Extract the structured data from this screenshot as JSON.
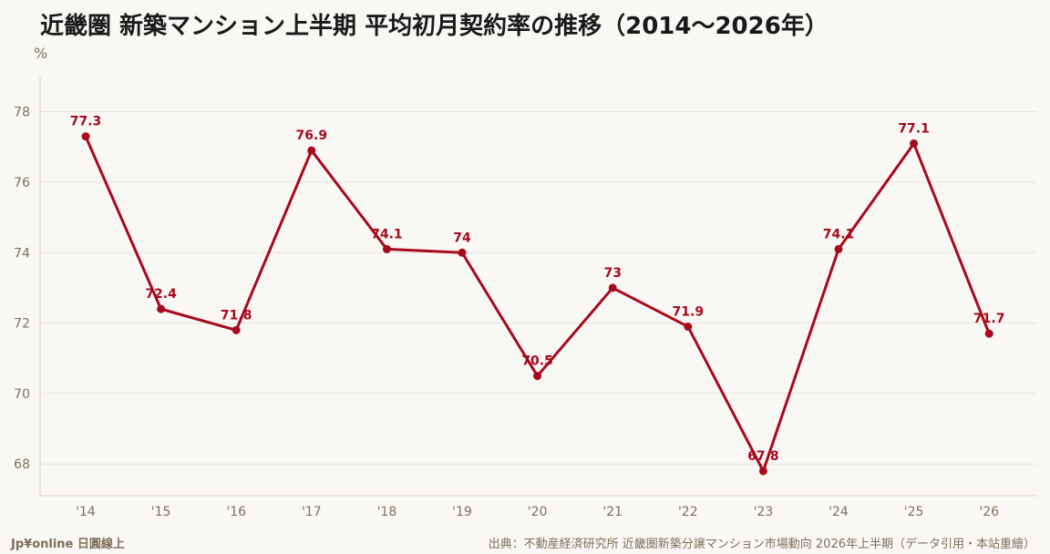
{
  "title": "近畿圏 新築マンション上半期 平均初月契約率の推移（2014〜2026年）",
  "unit": "%",
  "footer": {
    "brand": "Jp¥online 日圓線上",
    "source": "出典：不動産経済研究所 近畿圏新築分譲マンション市場動向 2026年上半期（データ引用・本站重繪）"
  },
  "colors": {
    "line": "#a8091c",
    "label": "#a8091c",
    "axis_text": "#7d6e5c",
    "grid": "#e8e3dc",
    "background": "#faf8f5"
  },
  "chart_data": {
    "type": "line",
    "title": "近畿圏 新築マンション上半期 平均初月契約率の推移（2014〜2026年）",
    "ylabel": "%",
    "categories": [
      "'14",
      "'15",
      "'16",
      "'17",
      "'18",
      "'19",
      "'20",
      "'21",
      "'22",
      "'23",
      "'24",
      "'25",
      "'26"
    ],
    "series": [
      {
        "values": [
          77.3,
          72.4,
          71.8,
          76.9,
          74.1,
          74,
          70.5,
          73,
          71.9,
          67.8,
          74.1,
          77.1,
          71.7
        ],
        "labels": [
          "77.3",
          "72.4",
          "71.8",
          "76.9",
          "74.1",
          "74",
          "70.5",
          "73",
          "71.9",
          "67.8",
          "74.1",
          "77.1",
          "71.7"
        ]
      }
    ],
    "yticks": [
      68,
      70,
      72,
      74,
      76,
      78
    ],
    "ylim": [
      67.1,
      79
    ],
    "grid": true,
    "legend": "none"
  }
}
